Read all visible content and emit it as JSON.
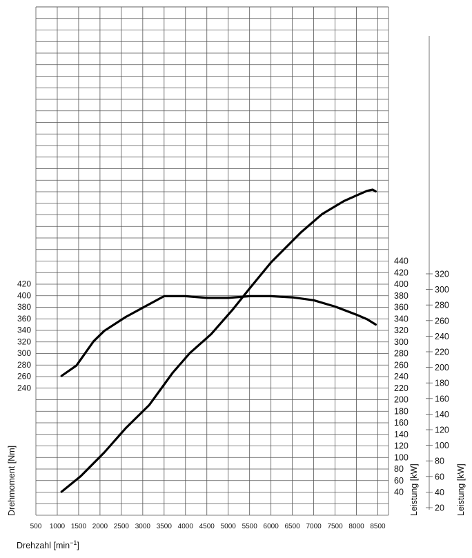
{
  "chart_data": {
    "type": "line",
    "x": {
      "label": "Drehzahl [min",
      "label_superscript": "−1",
      "label_close": "]",
      "range": [
        500,
        8750
      ],
      "ticks": [
        500,
        1000,
        1500,
        2000,
        2500,
        3000,
        3500,
        4000,
        4500,
        5000,
        5500,
        6000,
        6500,
        7000,
        7500,
        8000,
        8500
      ]
    },
    "torque_axis": {
      "label": "Drehmoment [Nm]",
      "ticks": [
        240,
        260,
        280,
        300,
        320,
        340,
        360,
        380,
        400,
        420
      ]
    },
    "power_axis_inner": {
      "label": "Leistung [kW]",
      "ticks": [
        40,
        60,
        80,
        100,
        120,
        140,
        160,
        180,
        200,
        220,
        240,
        260,
        280,
        300,
        320,
        340,
        360,
        380,
        400,
        420,
        440
      ]
    },
    "power_axis_outer": {
      "label": "Leistung [kW]",
      "ticks": [
        20,
        40,
        60,
        80,
        100,
        120,
        140,
        160,
        180,
        200,
        220,
        240,
        260,
        280,
        300,
        320
      ]
    },
    "grid": true,
    "series": [
      {
        "axis": "torque",
        "points": [
          [
            1100,
            260
          ],
          [
            1450,
            278
          ],
          [
            1850,
            320
          ],
          [
            2100,
            338
          ],
          [
            2600,
            362
          ],
          [
            3000,
            378
          ],
          [
            3500,
            398
          ],
          [
            4000,
            398
          ],
          [
            4500,
            395
          ],
          [
            5000,
            395
          ],
          [
            5500,
            398
          ],
          [
            6000,
            398
          ],
          [
            6500,
            396
          ],
          [
            7000,
            391
          ],
          [
            7500,
            380
          ],
          [
            8000,
            366
          ],
          [
            8250,
            358
          ],
          [
            8450,
            349
          ]
        ]
      },
      {
        "axis": "power",
        "points": [
          [
            1100,
            40
          ],
          [
            1550,
            67
          ],
          [
            2100,
            108
          ],
          [
            2600,
            150
          ],
          [
            3150,
            190
          ],
          [
            3700,
            246
          ],
          [
            4100,
            280
          ],
          [
            4600,
            313
          ],
          [
            5100,
            355
          ],
          [
            5500,
            392
          ],
          [
            6000,
            437
          ],
          [
            6700,
            489
          ],
          [
            7200,
            521
          ],
          [
            7700,
            543
          ],
          [
            8000,
            553
          ],
          [
            8250,
            561
          ],
          [
            8380,
            563
          ],
          [
            8450,
            560
          ]
        ]
      }
    ]
  }
}
